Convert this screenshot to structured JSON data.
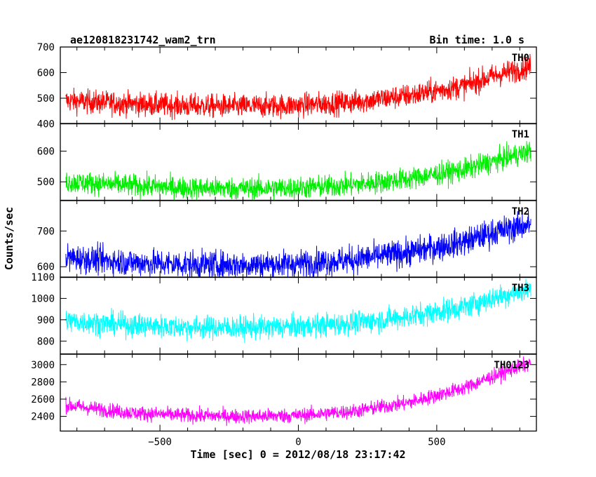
{
  "header": {
    "title": "ae120818231742_wam2_trn",
    "bin_time": "Bin time: 1.0 s"
  },
  "axes": {
    "xlabel": "Time [sec] 0 = 2012/08/18 23:17:42",
    "ylabel": "Counts/sec"
  },
  "colors": {
    "TH0": "#ff0000",
    "TH1": "#00ee00",
    "TH2": "#0000ff",
    "TH3": "#00ffff",
    "TH0123": "#ff00ff"
  },
  "chart_data": {
    "type": "line",
    "title": "ae120818231742_wam2_trn",
    "xlabel": "Time [sec] 0 = 2012/08/18 23:17:42",
    "ylabel": "Counts/sec",
    "xlim": [
      -860,
      860
    ],
    "xticks": [
      "−500",
      "0",
      "500"
    ],
    "xtick_values": [
      -500,
      0,
      500
    ],
    "x_range": [
      -840,
      840
    ],
    "bin_time_s": 1.0,
    "grid": false,
    "panels": [
      {
        "label": "TH0",
        "ylim": [
          400,
          700
        ],
        "yticks": [
          "400",
          "500",
          "600",
          "700"
        ],
        "ytick_values": [
          400,
          500,
          600,
          700
        ],
        "trend_x": [
          -840,
          -600,
          -400,
          -200,
          0,
          200,
          400,
          600,
          700,
          840
        ],
        "trend_y": [
          490,
          478,
          470,
          468,
          472,
          485,
          510,
          548,
          585,
          625
        ],
        "noise_amplitude": 38
      },
      {
        "label": "TH1",
        "ylim": [
          440,
          690
        ],
        "yticks": [
          "500",
          "600"
        ],
        "ytick_values": [
          500,
          600
        ],
        "trend_x": [
          -840,
          -600,
          -400,
          -200,
          0,
          200,
          400,
          600,
          700,
          840
        ],
        "trend_y": [
          500,
          488,
          480,
          478,
          480,
          490,
          510,
          540,
          565,
          600
        ],
        "noise_amplitude": 30
      },
      {
        "label": "TH2",
        "ylim": [
          570,
          785
        ],
        "yticks": [
          "600",
          "700"
        ],
        "ytick_values": [
          600,
          700
        ],
        "trend_x": [
          -840,
          -600,
          -400,
          -200,
          0,
          200,
          400,
          600,
          700,
          840
        ],
        "trend_y": [
          625,
          612,
          606,
          605,
          608,
          620,
          640,
          670,
          695,
          720
        ],
        "noise_amplitude": 32
      },
      {
        "label": "TH3",
        "ylim": [
          740,
          1100
        ],
        "yticks": [
          "800",
          "900",
          "1000",
          "1100"
        ],
        "ytick_values": [
          800,
          900,
          1000,
          1100
        ],
        "trend_x": [
          -840,
          -600,
          -400,
          -200,
          0,
          200,
          400,
          600,
          700,
          840
        ],
        "trend_y": [
          895,
          875,
          865,
          862,
          868,
          885,
          915,
          960,
          1000,
          1045
        ],
        "noise_amplitude": 45
      },
      {
        "label": "TH0123",
        "ylim": [
          2230,
          3120
        ],
        "yticks": [
          "2400",
          "2600",
          "2800",
          "3000"
        ],
        "ytick_values": [
          2400,
          2600,
          2800,
          3000
        ],
        "trend_x": [
          -840,
          -600,
          -400,
          -200,
          0,
          200,
          400,
          600,
          700,
          840
        ],
        "trend_y": [
          2530,
          2440,
          2410,
          2400,
          2410,
          2460,
          2560,
          2730,
          2860,
          3020
        ],
        "noise_amplitude": 70
      }
    ]
  }
}
